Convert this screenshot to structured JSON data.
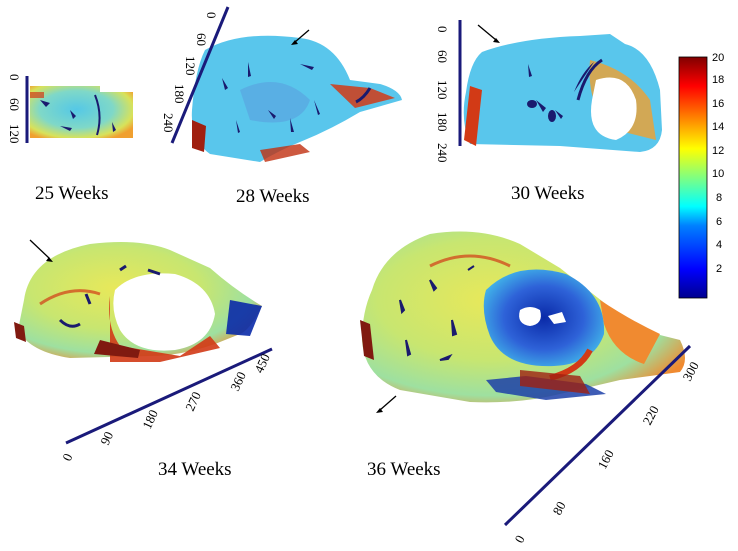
{
  "panels": [
    {
      "id": "w25",
      "label": "25 Weeks",
      "scale_ticks": [
        "0",
        "60",
        "120"
      ]
    },
    {
      "id": "w28",
      "label": "28 Weeks",
      "scale_ticks": [
        "0",
        "60",
        "120",
        "180",
        "240"
      ]
    },
    {
      "id": "w30",
      "label": "30 Weeks",
      "scale_ticks": [
        "0",
        "60",
        "120",
        "180",
        "240"
      ]
    },
    {
      "id": "w34",
      "label": "34 Weeks",
      "scale_ticks": [
        "0",
        "90",
        "180",
        "270",
        "360",
        "450"
      ]
    },
    {
      "id": "w36",
      "label": "36 Weeks",
      "scale_ticks": [
        "0",
        "80",
        "160",
        "220",
        "300"
      ]
    }
  ],
  "colorbar": {
    "min": 0,
    "max": 20,
    "ticks": [
      "20",
      "18",
      "16",
      "14",
      "12",
      "10",
      "8",
      "6",
      "4",
      "2"
    ],
    "colormap": [
      "#00008f",
      "#0000ff",
      "#0080ff",
      "#00ffff",
      "#80ff80",
      "#ffff00",
      "#ff8000",
      "#ff0000",
      "#800000"
    ]
  },
  "colors": {
    "scale_bar": "#1a1a7a",
    "tissue_main": "#7fd8d8",
    "tissue_warm": "#e8e25a",
    "tissue_hot": "#d23a16",
    "tissue_cold": "#1c3fa8",
    "tissue_dark": "#1a1a6e"
  }
}
